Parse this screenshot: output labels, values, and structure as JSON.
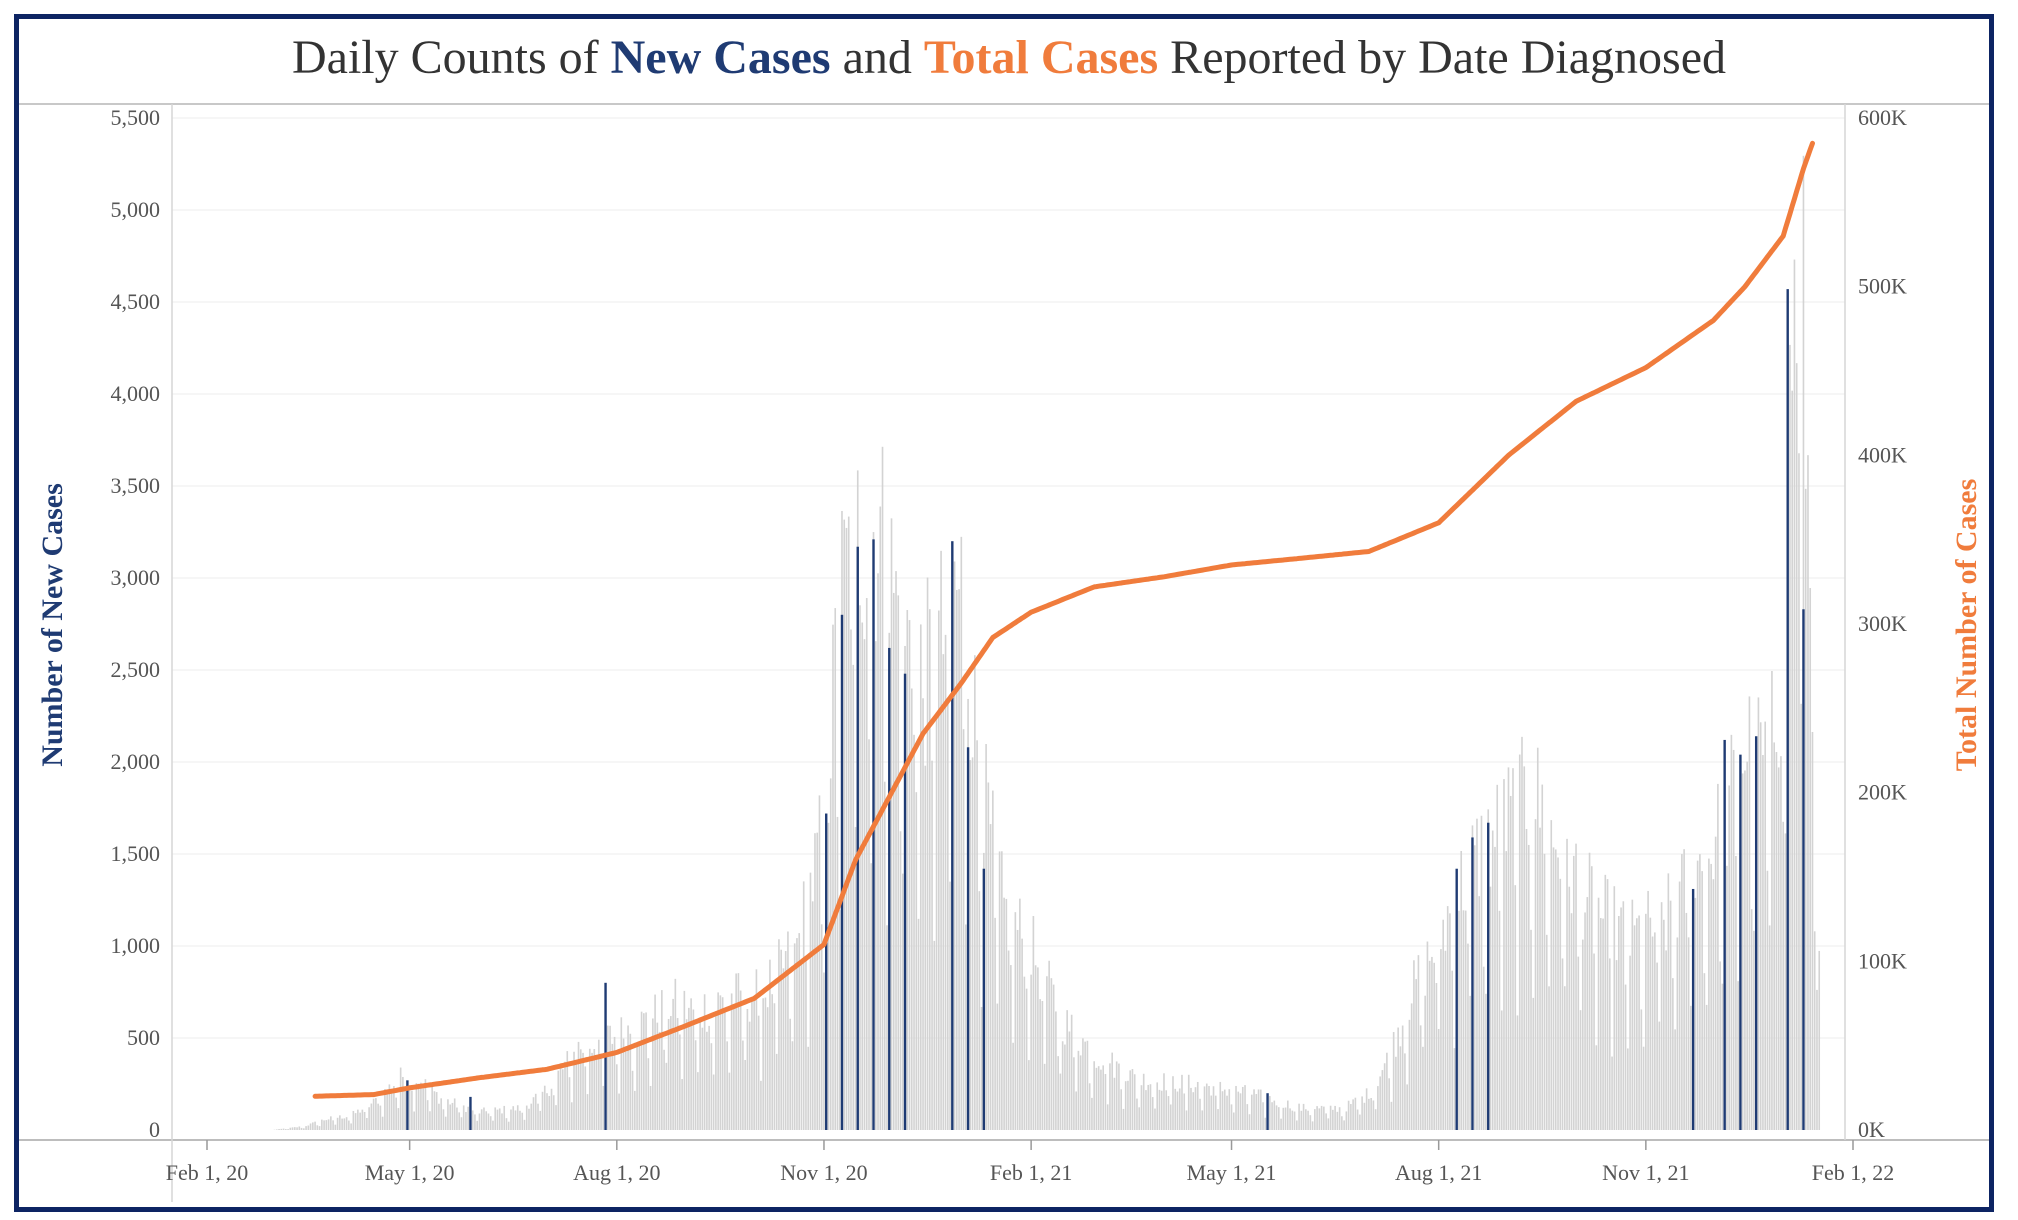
{
  "title": {
    "prefix": "Daily Counts of ",
    "new_cases": "New Cases",
    "and": " and ",
    "total_cases": "Total Cases",
    "suffix": " Reported by Date Diagnosed"
  },
  "colors": {
    "new_cases_bar": "#d3d3d3",
    "new_cases_highlight": "#1f3b73",
    "total_cases_line": "#f07c3c",
    "frame": "#0d2463",
    "left_axis_title": "#1f3b73",
    "right_axis_title": "#f07c3c"
  },
  "chart_data": {
    "type": "bar",
    "secondary_type": "line",
    "ylabel": "Number of New Cases",
    "y2label": "Total Number of Cases",
    "ylim": [
      0,
      5500
    ],
    "y2lim": [
      0,
      600000
    ],
    "y_ticks": [
      "0",
      "500",
      "1,000",
      "1,500",
      "2,000",
      "2,500",
      "3,000",
      "3,500",
      "4,000",
      "4,500",
      "5,000",
      "5,500"
    ],
    "y2_ticks": [
      "0K",
      "100K",
      "200K",
      "300K",
      "400K",
      "500K",
      "600K"
    ],
    "x_ticks": [
      "Feb 1, 20",
      "May 1, 20",
      "Aug 1, 20",
      "Nov 1, 20",
      "Feb 1, 21",
      "May 1, 21",
      "Aug 1, 21",
      "Nov 1, 21",
      "Feb 1, 22"
    ],
    "x_tick_dates": [
      "2020-02-01",
      "2020-05-01",
      "2020-08-01",
      "2020-11-01",
      "2021-02-01",
      "2021-05-01",
      "2021-08-01",
      "2021-11-01",
      "2022-02-01"
    ],
    "grid": true,
    "new_cases_keypoints": [
      [
        "2020-03-01",
        0
      ],
      [
        "2020-03-15",
        20
      ],
      [
        "2020-03-25",
        60
      ],
      [
        "2020-04-05",
        80
      ],
      [
        "2020-04-15",
        150
      ],
      [
        "2020-04-28",
        300
      ],
      [
        "2020-05-05",
        280
      ],
      [
        "2020-05-15",
        170
      ],
      [
        "2020-06-01",
        100
      ],
      [
        "2020-06-20",
        120
      ],
      [
        "2020-07-01",
        220
      ],
      [
        "2020-07-15",
        450
      ],
      [
        "2020-08-01",
        520
      ],
      [
        "2020-08-15",
        600
      ],
      [
        "2020-08-25",
        700
      ],
      [
        "2020-09-05",
        650
      ],
      [
        "2020-09-20",
        720
      ],
      [
        "2020-10-05",
        750
      ],
      [
        "2020-10-20",
        1000
      ],
      [
        "2020-11-01",
        1650
      ],
      [
        "2020-11-08",
        2900
      ],
      [
        "2020-11-15",
        3250
      ],
      [
        "2020-11-25",
        3300
      ],
      [
        "2020-12-05",
        2800
      ],
      [
        "2020-12-15",
        2450
      ],
      [
        "2020-12-25",
        2750
      ],
      [
        "2021-01-01",
        3000
      ],
      [
        "2021-01-10",
        1900
      ],
      [
        "2021-01-20",
        1200
      ],
      [
        "2021-02-01",
        1000
      ],
      [
        "2021-02-15",
        600
      ],
      [
        "2021-03-01",
        420
      ],
      [
        "2021-03-20",
        280
      ],
      [
        "2021-04-15",
        250
      ],
      [
        "2021-05-10",
        200
      ],
      [
        "2021-06-01",
        120
      ],
      [
        "2021-06-20",
        120
      ],
      [
        "2021-07-01",
        200
      ],
      [
        "2021-07-10",
        400
      ],
      [
        "2021-07-20",
        750
      ],
      [
        "2021-08-01",
        1050
      ],
      [
        "2021-08-15",
        1450
      ],
      [
        "2021-09-01",
        1700
      ],
      [
        "2021-09-12",
        1850
      ],
      [
        "2021-09-25",
        1500
      ],
      [
        "2021-10-10",
        1200
      ],
      [
        "2021-10-25",
        1050
      ],
      [
        "2021-11-10",
        1150
      ],
      [
        "2021-11-25",
        1450
      ],
      [
        "2021-12-05",
        1650
      ],
      [
        "2021-12-15",
        2100
      ],
      [
        "2021-12-25",
        2000
      ],
      [
        "2021-12-31",
        2500
      ],
      [
        "2022-01-05",
        4300
      ],
      [
        "2022-01-09",
        5000
      ],
      [
        "2022-01-13",
        3000
      ],
      [
        "2022-01-17",
        900
      ]
    ],
    "highlighted_bars": [
      [
        "2020-04-30",
        270
      ],
      [
        "2020-05-28",
        180
      ],
      [
        "2020-07-27",
        800
      ],
      [
        "2020-11-02",
        1720
      ],
      [
        "2020-11-09",
        2800
      ],
      [
        "2020-11-16",
        3170
      ],
      [
        "2020-11-23",
        3210
      ],
      [
        "2020-11-30",
        2620
      ],
      [
        "2020-12-07",
        2480
      ],
      [
        "2020-12-28",
        3200
      ],
      [
        "2021-01-04",
        2080
      ],
      [
        "2021-01-11",
        1420
      ],
      [
        "2021-05-17",
        200
      ],
      [
        "2021-08-09",
        1420
      ],
      [
        "2021-08-16",
        1590
      ],
      [
        "2021-08-23",
        1670
      ],
      [
        "2021-11-22",
        1310
      ],
      [
        "2021-12-06",
        2120
      ],
      [
        "2021-12-13",
        2040
      ],
      [
        "2021-12-20",
        2140
      ],
      [
        "2022-01-03",
        4570
      ],
      [
        "2022-01-10",
        2830
      ]
    ],
    "total_cases_keypoints": [
      [
        "2020-03-20",
        20000
      ],
      [
        "2020-04-15",
        21000
      ],
      [
        "2020-05-01",
        25000
      ],
      [
        "2020-06-01",
        31000
      ],
      [
        "2020-07-01",
        36000
      ],
      [
        "2020-08-01",
        46000
      ],
      [
        "2020-09-01",
        62000
      ],
      [
        "2020-10-01",
        78000
      ],
      [
        "2020-11-01",
        110000
      ],
      [
        "2020-11-15",
        160000
      ],
      [
        "2020-12-01",
        200000
      ],
      [
        "2020-12-15",
        235000
      ],
      [
        "2021-01-01",
        265000
      ],
      [
        "2021-01-15",
        292000
      ],
      [
        "2021-02-01",
        307000
      ],
      [
        "2021-03-01",
        322000
      ],
      [
        "2021-04-01",
        328000
      ],
      [
        "2021-05-01",
        335000
      ],
      [
        "2021-06-01",
        339000
      ],
      [
        "2021-07-01",
        343000
      ],
      [
        "2021-08-01",
        360000
      ],
      [
        "2021-09-01",
        400000
      ],
      [
        "2021-10-01",
        432000
      ],
      [
        "2021-11-01",
        452000
      ],
      [
        "2021-12-01",
        480000
      ],
      [
        "2021-12-15",
        500000
      ],
      [
        "2022-01-01",
        530000
      ],
      [
        "2022-01-10",
        570000
      ],
      [
        "2022-01-14",
        585000
      ]
    ]
  }
}
